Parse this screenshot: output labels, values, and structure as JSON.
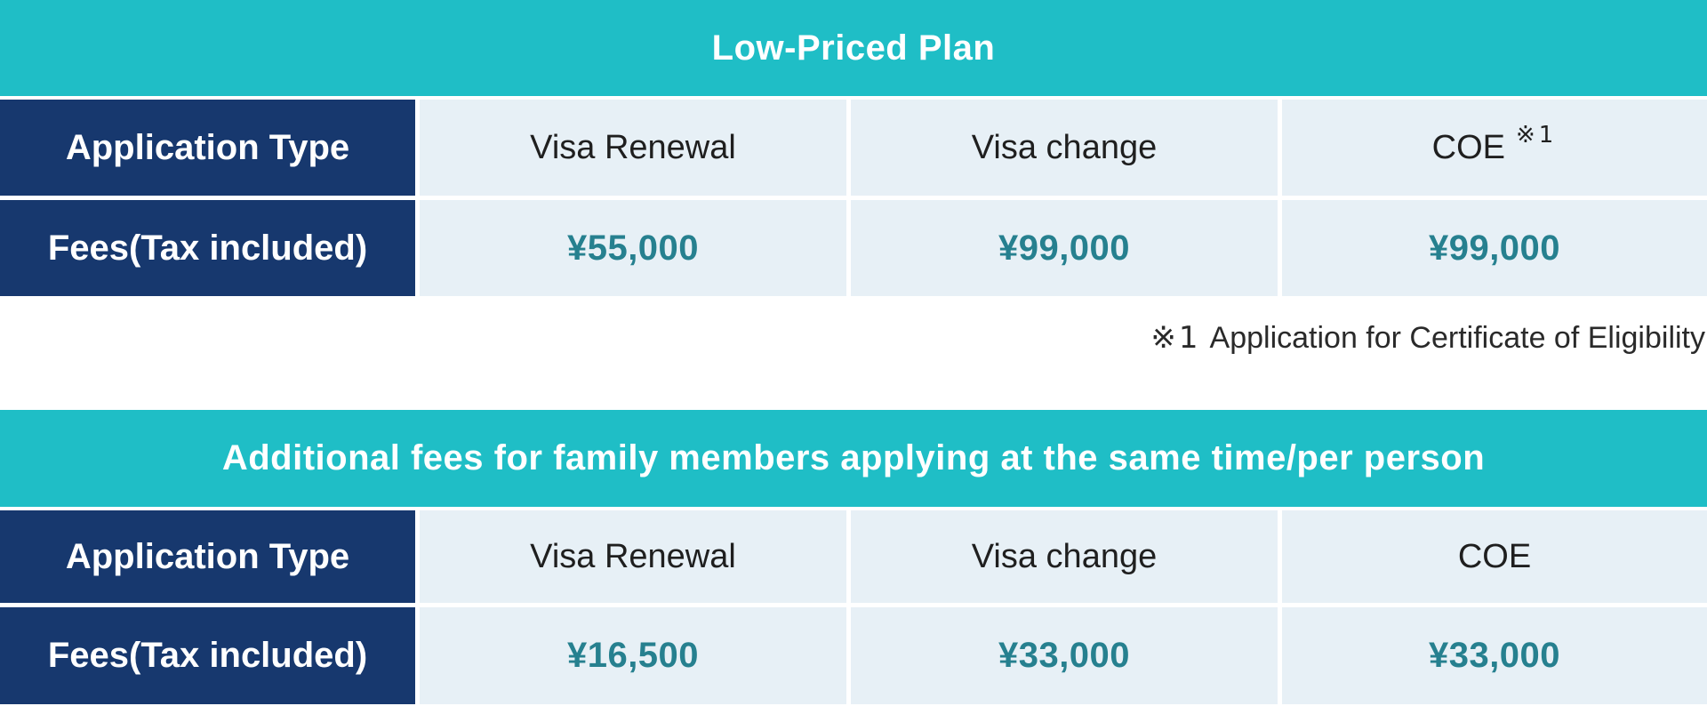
{
  "colors": {
    "banner_teal": "#1fbec6",
    "header_navy": "#17386e",
    "cell_light_blue": "#e7f0f6",
    "fee_teal_text": "#26808f",
    "banner_text": "#ffffff"
  },
  "table1": {
    "title": "Low-Priced Plan",
    "row_headers": [
      "Application Type",
      "Fees(Tax included)"
    ],
    "columns": [
      "Visa Renewal",
      "Visa change",
      "COE"
    ],
    "coe_note_ref": "※1",
    "fees": [
      "¥55,000",
      "¥99,000",
      "¥99,000"
    ],
    "footnote": {
      "marker": "※1",
      "text": "Application for Certificate of Eligibility"
    }
  },
  "table2": {
    "title": "Additional fees for family members applying at the same time/per person",
    "row_headers": [
      "Application Type",
      "Fees(Tax included)"
    ],
    "columns": [
      "Visa Renewal",
      "Visa change",
      "COE"
    ],
    "fees": [
      "¥16,500",
      "¥33,000",
      "¥33,000"
    ]
  }
}
